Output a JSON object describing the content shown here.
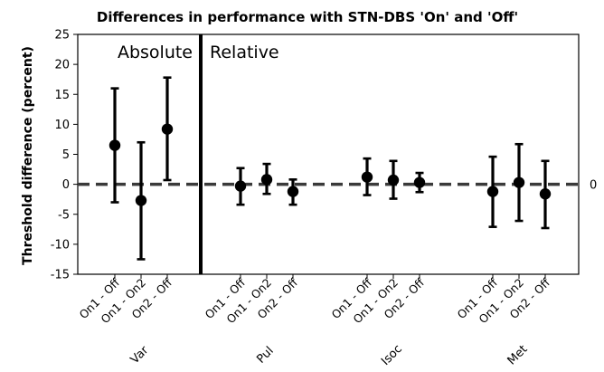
{
  "chart_data": {
    "type": "scatter",
    "title": "Differences in performance with STN-DBS 'On' and 'Off'",
    "ylabel": "Threshold difference (percent)",
    "ylim": [
      -15,
      25
    ],
    "yticks": [
      -15,
      -10,
      -5,
      0,
      5,
      10,
      15,
      20,
      25
    ],
    "zero_line_label": "0",
    "region_labels": [
      "Absolute",
      "Relative"
    ],
    "groups": [
      {
        "name": "Var",
        "points": [
          {
            "label": "On1 - Off",
            "mean": 6.5,
            "low": -3.0,
            "high": 16.0
          },
          {
            "label": "On1 - On2",
            "mean": -2.7,
            "low": -12.5,
            "high": 7.0
          },
          {
            "label": "On2 - Off",
            "mean": 9.2,
            "low": 0.7,
            "high": 17.8
          }
        ]
      },
      {
        "name": "Pul",
        "points": [
          {
            "label": "On1 - Off",
            "mean": -0.3,
            "low": -3.4,
            "high": 2.7
          },
          {
            "label": "On1 - On2",
            "mean": 0.8,
            "low": -1.6,
            "high": 3.4
          },
          {
            "label": "On2 - Off",
            "mean": -1.2,
            "low": -3.4,
            "high": 0.8
          }
        ]
      },
      {
        "name": "Isoc",
        "points": [
          {
            "label": "On1 - Off",
            "mean": 1.2,
            "low": -1.8,
            "high": 4.3
          },
          {
            "label": "On1 - On2",
            "mean": 0.7,
            "low": -2.4,
            "high": 3.9
          },
          {
            "label": "On2 - Off",
            "mean": 0.3,
            "low": -1.3,
            "high": 1.9
          }
        ]
      },
      {
        "name": "Met",
        "points": [
          {
            "label": "On1 - Off",
            "mean": -1.2,
            "low": -7.1,
            "high": 4.6
          },
          {
            "label": "On1 - On2",
            "mean": 0.3,
            "low": -6.1,
            "high": 6.7
          },
          {
            "label": "On2 - Off",
            "mean": -1.6,
            "low": -7.3,
            "high": 3.9
          }
        ]
      }
    ],
    "zero_line": true,
    "grid": false,
    "legend": "none"
  }
}
